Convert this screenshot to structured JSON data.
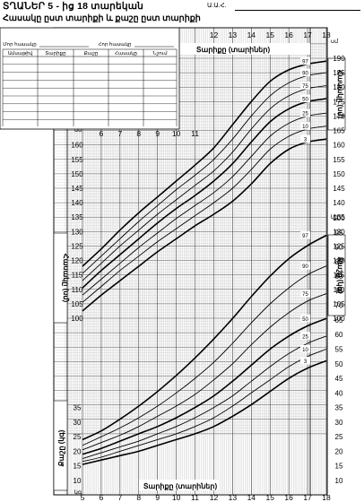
{
  "header": {
    "title": "ՏՂԱՆԵՐ  5 - ից 18 տարեկան",
    "subtitle": "Հասակը ըստ տարիքի և քաշը ըստ տարիքի",
    "name_label": "Ա.Ա.Հ."
  },
  "info_table": {
    "mother_height_label": "Մոր հասակը",
    "father_height_label": "Հոր հասակը",
    "columns": [
      "Ամսաթիվ",
      "Տարիքը",
      "Քաշը",
      "Հասակը",
      "Նշում"
    ]
  },
  "chart_data": {
    "type": "line",
    "title": "",
    "x_axis": {
      "label": "Տարիքը (տարիներ)",
      "range": [
        5,
        18
      ],
      "ticks": [
        5,
        6,
        7,
        8,
        9,
        10,
        11,
        12,
        13,
        14,
        15,
        16,
        17,
        18
      ]
    },
    "upper_x_axis": {
      "label": "Տարիքը (տարիներ)",
      "ticks": [
        12,
        13,
        14,
        15,
        16,
        17,
        18
      ]
    },
    "height_axis": {
      "label": "Հասակը (սմ)",
      "unit": "սմ",
      "range": [
        100,
        190
      ],
      "ticks": [
        100,
        105,
        110,
        115,
        120,
        125,
        130,
        135,
        140,
        145,
        150,
        155,
        160,
        165,
        170,
        175,
        180,
        185,
        190
      ]
    },
    "weight_axis": {
      "label": "Քաշը (կգ)",
      "unit": "կգ",
      "range": [
        10,
        100
      ],
      "ticks": [
        10,
        15,
        20,
        25,
        30,
        35,
        40,
        45,
        50,
        55,
        60,
        65,
        70,
        75,
        80,
        85,
        90,
        95,
        100
      ]
    },
    "height_series": [
      {
        "name": "97",
        "x": [
          5,
          6,
          7,
          8,
          9,
          10,
          11,
          12,
          13,
          14,
          15,
          16,
          17,
          18
        ],
        "values": [
          118,
          124,
          130.5,
          136.5,
          142,
          147.5,
          153,
          159,
          167,
          175,
          182,
          186,
          188,
          189
        ]
      },
      {
        "name": "90",
        "x": [
          5,
          6,
          7,
          8,
          9,
          10,
          11,
          12,
          13,
          14,
          15,
          16,
          17,
          18
        ],
        "values": [
          115.5,
          121.5,
          127.5,
          133.5,
          139,
          144.5,
          149.5,
          155,
          162,
          170,
          177,
          181.5,
          184,
          185
        ]
      },
      {
        "name": "75",
        "x": [
          5,
          6,
          7,
          8,
          9,
          10,
          11,
          12,
          13,
          14,
          15,
          16,
          17,
          18
        ],
        "values": [
          113,
          119,
          125,
          130.5,
          136,
          141,
          146,
          151,
          157.5,
          165.5,
          172.5,
          177,
          179.5,
          180.5
        ]
      },
      {
        "name": "50",
        "x": [
          5,
          6,
          7,
          8,
          9,
          10,
          11,
          12,
          13,
          14,
          15,
          16,
          17,
          18
        ],
        "values": [
          110.5,
          116.5,
          122,
          127.5,
          133,
          138,
          142.5,
          147.5,
          153.5,
          161,
          168,
          172.5,
          175,
          176
        ]
      },
      {
        "name": "25",
        "x": [
          5,
          6,
          7,
          8,
          9,
          10,
          11,
          12,
          13,
          14,
          15,
          16,
          17,
          18
        ],
        "values": [
          108,
          113.5,
          119,
          124.5,
          129.5,
          134.5,
          139,
          143.5,
          149,
          156,
          163,
          167.5,
          170,
          171
        ]
      },
      {
        "name": "10",
        "x": [
          5,
          6,
          7,
          8,
          9,
          10,
          11,
          12,
          13,
          14,
          15,
          16,
          17,
          18
        ],
        "values": [
          105.5,
          111,
          116.5,
          121.5,
          126.5,
          131,
          135.5,
          140,
          145,
          151.5,
          158.5,
          163,
          165.5,
          166.5
        ]
      },
      {
        "name": "3",
        "x": [
          5,
          6,
          7,
          8,
          9,
          10,
          11,
          12,
          13,
          14,
          15,
          16,
          17,
          18
        ],
        "values": [
          102.5,
          108,
          113,
          118,
          123,
          127.5,
          132,
          136,
          140.5,
          146.5,
          153.5,
          158.5,
          161,
          162
        ]
      }
    ],
    "weight_series": [
      {
        "name": "97",
        "x": [
          5,
          6,
          7,
          8,
          9,
          10,
          11,
          12,
          13,
          14,
          15,
          16,
          17,
          18
        ],
        "values": [
          24,
          27,
          31,
          35.5,
          40.5,
          46,
          52,
          58.5,
          65.5,
          73,
          80,
          86,
          90.5,
          94
        ]
      },
      {
        "name": "90",
        "x": [
          5,
          6,
          7,
          8,
          9,
          10,
          11,
          12,
          13,
          14,
          15,
          16,
          17,
          18
        ],
        "values": [
          22,
          25,
          28,
          31.5,
          35.5,
          40,
          45,
          50.5,
          57,
          64,
          70.5,
          76,
          80.5,
          83.5
        ]
      },
      {
        "name": "75",
        "x": [
          5,
          6,
          7,
          8,
          9,
          10,
          11,
          12,
          13,
          14,
          15,
          16,
          17,
          18
        ],
        "values": [
          20.5,
          23,
          25.5,
          28.5,
          32,
          35.5,
          39.5,
          44.5,
          50,
          56.5,
          62.5,
          67.5,
          71.5,
          74
        ]
      },
      {
        "name": "50",
        "x": [
          5,
          6,
          7,
          8,
          9,
          10,
          11,
          12,
          13,
          14,
          15,
          16,
          17,
          18
        ],
        "values": [
          19,
          21,
          23.5,
          26,
          28.5,
          31.5,
          35,
          39,
          44,
          49.5,
          55,
          59.5,
          63,
          65.5
        ]
      },
      {
        "name": "25",
        "x": [
          5,
          6,
          7,
          8,
          9,
          10,
          11,
          12,
          13,
          14,
          15,
          16,
          17,
          18
        ],
        "values": [
          17.5,
          19.5,
          21.5,
          23.5,
          26,
          28.5,
          31.5,
          35,
          39,
          44,
          49,
          53.5,
          57,
          59.5
        ]
      },
      {
        "name": "10",
        "x": [
          5,
          6,
          7,
          8,
          9,
          10,
          11,
          12,
          13,
          14,
          15,
          16,
          17,
          18
        ],
        "values": [
          16.5,
          18,
          20,
          22,
          24,
          26,
          28.5,
          31.5,
          35.5,
          40,
          44.5,
          49,
          52.5,
          55
        ]
      },
      {
        "name": "3",
        "x": [
          5,
          6,
          7,
          8,
          9,
          10,
          11,
          12,
          13,
          14,
          15,
          16,
          17,
          18
        ],
        "values": [
          15.5,
          17,
          18.5,
          20,
          22,
          24,
          26,
          28.5,
          32,
          36,
          40.5,
          45,
          48.5,
          51
        ]
      }
    ],
    "grid": true
  }
}
